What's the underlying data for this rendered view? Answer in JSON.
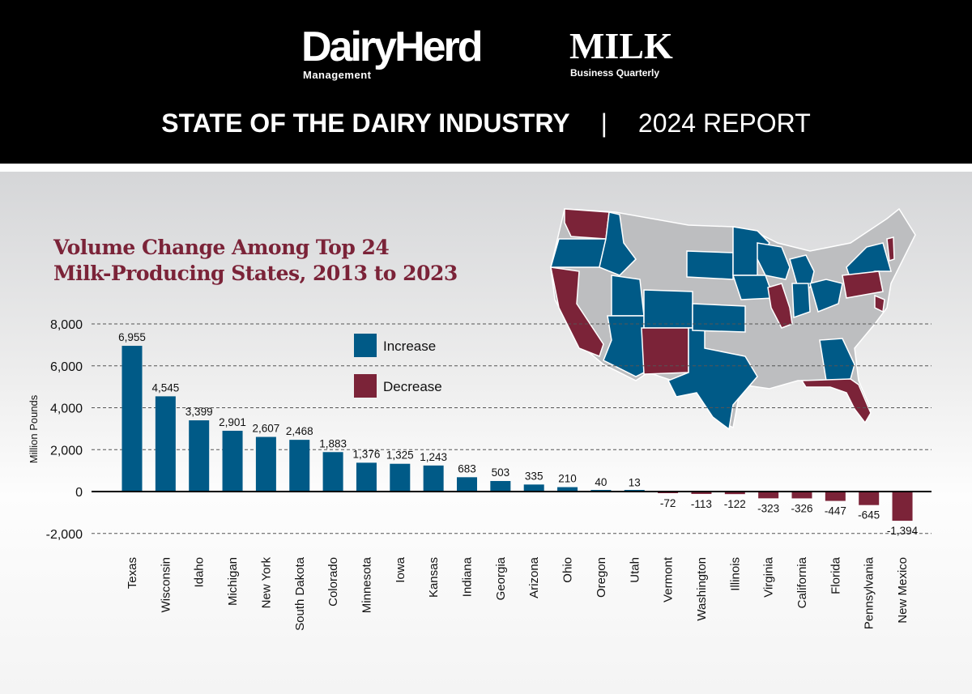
{
  "header": {
    "logo_left": "DairyHerd",
    "logo_left_sub": "Management",
    "logo_right": "MILK",
    "logo_right_sub": "Business Quarterly",
    "title_bold": "STATE OF THE DAIRY INDUSTRY",
    "separator": "|",
    "title_light": "2024 REPORT"
  },
  "colors": {
    "increase": "#005a87",
    "decrease": "#7b2338",
    "title": "#7b2338",
    "header_bg": "#000000"
  },
  "chart_data": {
    "type": "bar",
    "title_lines": [
      "Volume Change Among Top 24",
      "Milk-Producing States, 2013 to 2023"
    ],
    "ylabel": "Million Pounds",
    "xlabel": "",
    "ylim": [
      -2000,
      8000
    ],
    "yticks": [
      -2000,
      0,
      2000,
      4000,
      6000,
      8000
    ],
    "ytick_labels": [
      "-2,000",
      "0",
      "2,000",
      "4,000",
      "6,000",
      "8,000"
    ],
    "grid": "dashed horizontal",
    "legend": {
      "placement": "top-center",
      "entries": [
        "Increase",
        "Decrease"
      ]
    },
    "categories": [
      "Texas",
      "Wisconsin",
      "Idaho",
      "Michigan",
      "New York",
      "South Dakota",
      "Colorado",
      "Minnesota",
      "Iowa",
      "Kansas",
      "Indiana",
      "Georgia",
      "Arizona",
      "Ohio",
      "Oregon",
      "Utah",
      "Vermont",
      "Washington",
      "Illinois",
      "Virginia",
      "California",
      "Florida",
      "Pennsylvania",
      "New Mexico"
    ],
    "values": [
      6955,
      4545,
      3399,
      2901,
      2607,
      2468,
      1883,
      1376,
      1325,
      1243,
      683,
      503,
      335,
      210,
      40,
      13,
      -72,
      -113,
      -122,
      -323,
      -326,
      -447,
      -645,
      -1394
    ],
    "value_labels": [
      "6,955",
      "4,545",
      "3,399",
      "2,901",
      "2,607",
      "2,468",
      "1,883",
      "1,376",
      "1,325",
      "1,243",
      "683",
      "503",
      "335",
      "210",
      "40",
      "13",
      "-72",
      "-113",
      "-122",
      "-323",
      "-326",
      "-447",
      "-645",
      "-1,394"
    ]
  },
  "map": {
    "increase_states": [
      "Oregon",
      "Idaho",
      "Utah",
      "Arizona",
      "Colorado",
      "Texas",
      "South Dakota",
      "Kansas",
      "Minnesota",
      "Iowa",
      "Wisconsin",
      "Michigan",
      "Indiana",
      "Ohio",
      "New York",
      "Georgia"
    ],
    "decrease_states": [
      "Washington",
      "California",
      "New Mexico",
      "Illinois",
      "Pennsylvania",
      "Vermont",
      "Virginia",
      "Florida"
    ]
  }
}
